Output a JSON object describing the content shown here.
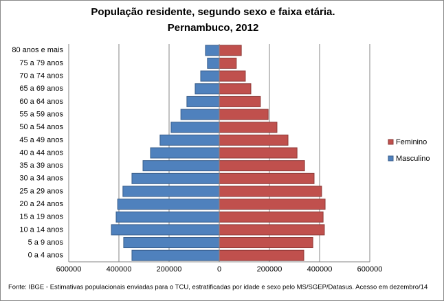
{
  "chart_data": {
    "type": "pyramid",
    "title": "População residente, segundo sexo e faixa etária.",
    "subtitle": "Pernambuco, 2012",
    "source": "Fonte:  IBGE - Estimativas populacionais enviadas para o TCU, estratificadas por idade e sexo pelo MS/SGEP/Datasus. Acesso em dezembro/14",
    "categories": [
      "0 a 4 anos",
      "5 a 9 anos",
      "10 a 14 anos",
      "15 a 19 anos",
      "20 a 24 anos",
      "25 a 29 anos",
      "30 a 34 anos",
      "35 a 39 anos",
      "40 a 44 anos",
      "45 a 49 anos",
      "50 a 54 anos",
      "55 a 59 anos",
      "60 a 64 anos",
      "65 a 69 anos",
      "70 a 74 anos",
      "75 a 79 anos",
      "80 anos e mais"
    ],
    "series": [
      {
        "name": "Masculino",
        "color": "#4f81bd",
        "values": [
          -348000,
          -381000,
          -430000,
          -411000,
          -405000,
          -384000,
          -348000,
          -304000,
          -274000,
          -236000,
          -192000,
          -153000,
          -129000,
          -96000,
          -74000,
          -47000,
          -55000
        ]
      },
      {
        "name": "Feminino",
        "color": "#c0504d",
        "values": [
          337000,
          373000,
          419000,
          414000,
          422000,
          408000,
          378000,
          340000,
          310000,
          274000,
          230000,
          195000,
          164000,
          126000,
          104000,
          68000,
          88000
        ]
      }
    ],
    "xlim": [
      -600000,
      600000
    ],
    "xticks": [
      {
        "value": -600000,
        "label": "600000"
      },
      {
        "value": -400000,
        "label": "400000"
      },
      {
        "value": -200000,
        "label": "200000"
      },
      0,
      200000,
      400000,
      600000
    ],
    "grid": true,
    "legend": "right"
  }
}
